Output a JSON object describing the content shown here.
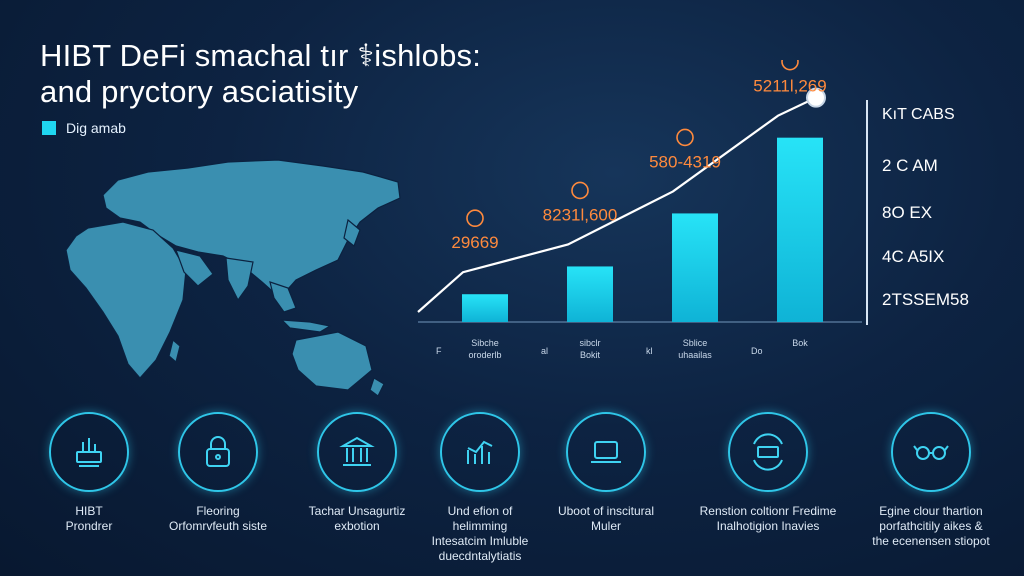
{
  "title_line1": "HIBT DeFi smachal tır ⚕ishlobs:",
  "title_line2": "and pryctory asciatisity",
  "legend": {
    "label": "Dig amab",
    "color": "#1fd6f0"
  },
  "chart_data": {
    "type": "bar",
    "categories": [
      "",
      "",
      "",
      ""
    ],
    "values": [
      1.1,
      2.2,
      4.3,
      7.3
    ],
    "value_labels": [
      "29669",
      "8231l,600",
      "580-4319",
      "5211l,269"
    ],
    "x_tick_labels": [
      {
        "mark": "F",
        "lines": [
          "Sibche",
          "oroderlb"
        ]
      },
      {
        "mark": "al",
        "lines": [
          "sibclr",
          "Bokit"
        ]
      },
      {
        "mark": "kl",
        "lines": [
          "Sblice",
          "uhaailas"
        ]
      },
      {
        "mark": "Do",
        "lines": [
          "Bok"
        ]
      }
    ],
    "title": "",
    "xlabel": "",
    "ylabel": "",
    "ylim": [
      0,
      8
    ],
    "grid": false,
    "bar_color": "#1fd6f0",
    "label_color": "#ff8a3d"
  },
  "side_list": {
    "header": "KıT CABS",
    "items": [
      "2 C AM",
      "8O EX",
      "4C A5IX",
      "2TSSEM58"
    ]
  },
  "features": [
    {
      "icon": "platform-icon",
      "lines": [
        "HIBT",
        "Prondrer"
      ]
    },
    {
      "icon": "lock-icon",
      "lines": [
        "Fleoring",
        "Orfomrvfeuth siste"
      ]
    },
    {
      "icon": "bank-icon",
      "lines": [
        "Tachar Unsagurtiz",
        "exbotion"
      ]
    },
    {
      "icon": "growth-chart-icon",
      "lines": [
        "Und efion of",
        "helimming",
        "Intesatcim Imluble",
        "duecdntalytiatis"
      ]
    },
    {
      "icon": "laptop-icon",
      "lines": [
        "Uboot of inscitural",
        "Muler"
      ]
    },
    {
      "icon": "exchange-icon",
      "lines": [
        "Renstion coltionr Fredime",
        "Inalhotigion Inavies"
      ]
    },
    {
      "icon": "glasses-icon",
      "lines": [
        "Egine clour thartion",
        "porfathcitily aikes &",
        "the ecenensen stiopot"
      ]
    }
  ],
  "colors": {
    "accent": "#1fd6f0",
    "highlight": "#ff8a3d",
    "background": "#0d2342"
  }
}
